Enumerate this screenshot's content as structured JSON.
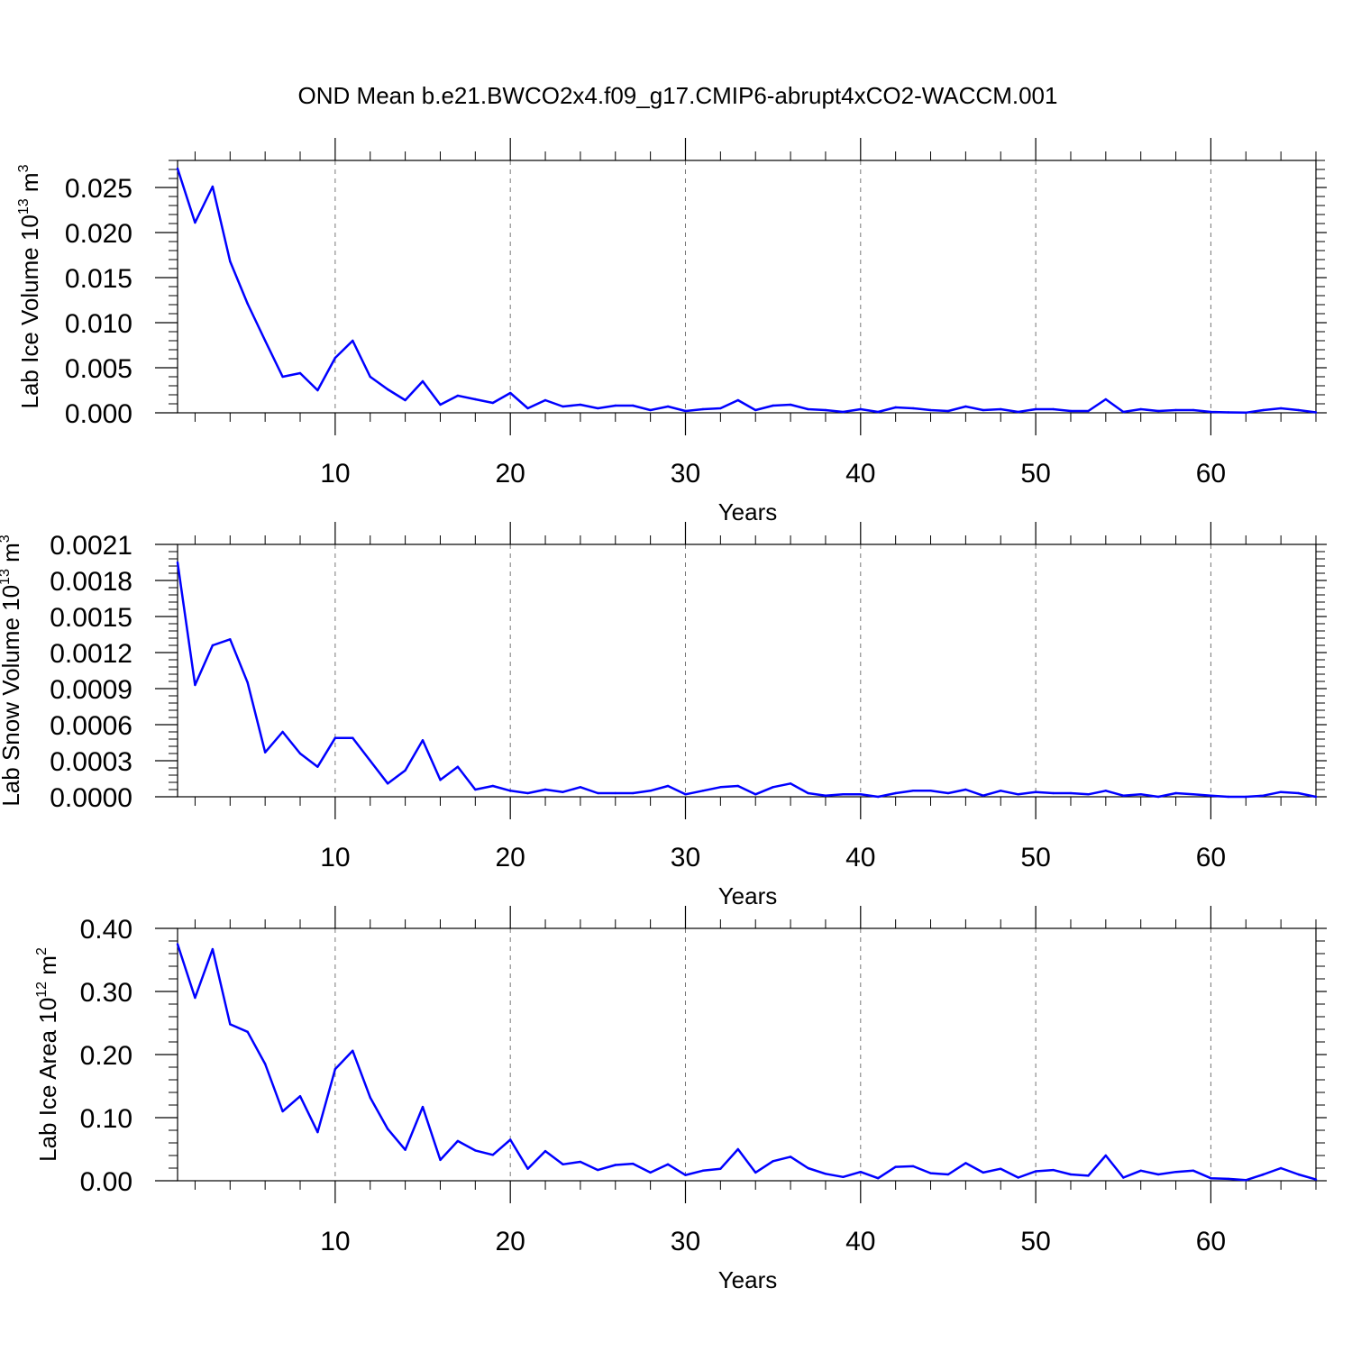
{
  "title": "OND Mean b.e21.BWCO2x4.f09_g17.CMIP6-abrupt4xCO2-WACCM.001",
  "line_color": "#0000ff",
  "chart_data": [
    {
      "type": "line",
      "id": "ice-volume",
      "xlabel": "Years",
      "ylabel": {
        "prefix": "Lab Ice Volume 10",
        "exp": "13",
        "unit": " m",
        "unit_exp": "3"
      },
      "xlim": [
        1,
        66
      ],
      "ylim": [
        0,
        0.028
      ],
      "xticks": [
        10,
        20,
        30,
        40,
        50,
        60
      ],
      "xtick_labels": [
        "10",
        "20",
        "30",
        "40",
        "50",
        "60"
      ],
      "yticks": [
        0,
        0.005,
        0.01,
        0.015,
        0.02,
        0.025
      ],
      "ytick_labels": [
        "0.000",
        "0.005",
        "0.010",
        "0.015",
        "0.020",
        "0.025"
      ],
      "x": [
        1,
        2,
        3,
        4,
        5,
        6,
        7,
        8,
        9,
        10,
        11,
        12,
        13,
        14,
        15,
        16,
        17,
        18,
        19,
        20,
        21,
        22,
        23,
        24,
        25,
        26,
        27,
        28,
        29,
        30,
        31,
        32,
        33,
        34,
        35,
        36,
        37,
        38,
        39,
        40,
        41,
        42,
        43,
        44,
        45,
        46,
        47,
        48,
        49,
        50,
        51,
        52,
        53,
        54,
        55,
        56,
        57,
        58,
        59,
        60,
        61,
        62,
        63,
        64,
        65,
        66
      ],
      "values": [
        0.0271,
        0.0211,
        0.0251,
        0.0168,
        0.0121,
        0.008,
        0.004,
        0.0044,
        0.0025,
        0.0061,
        0.008,
        0.004,
        0.0026,
        0.0014,
        0.0035,
        0.0009,
        0.0019,
        0.0015,
        0.0011,
        0.0022,
        0.0005,
        0.0014,
        0.0007,
        0.0009,
        0.0005,
        0.0008,
        0.0008,
        0.0003,
        0.0007,
        0.0002,
        0.0004,
        0.0005,
        0.0014,
        0.0003,
        0.0008,
        0.0009,
        0.0004,
        0.0003,
        0.0001,
        0.0004,
        0.0001,
        0.0006,
        0.0005,
        0.0003,
        0.0002,
        0.0007,
        0.0003,
        0.0004,
        0.0001,
        0.0004,
        0.0004,
        0.0002,
        0.0002,
        0.0015,
        0.0001,
        0.0004,
        0.0002,
        0.0003,
        0.0003,
        0.0001,
        5e-05,
        2e-05,
        0.0003,
        0.0005,
        0.0003,
        5e-05
      ]
    },
    {
      "type": "line",
      "id": "snow-volume",
      "xlabel": "Years",
      "ylabel": {
        "prefix": "Lab Snow Volume 10",
        "exp": "13",
        "unit": " m",
        "unit_exp": "3"
      },
      "xlim": [
        1,
        66
      ],
      "ylim": [
        0,
        0.0021
      ],
      "xticks": [
        10,
        20,
        30,
        40,
        50,
        60
      ],
      "xtick_labels": [
        "10",
        "20",
        "30",
        "40",
        "50",
        "60"
      ],
      "yticks": [
        0,
        0.0003,
        0.0006,
        0.0009,
        0.0012,
        0.0015,
        0.0018,
        0.0021
      ],
      "ytick_labels": [
        "0.0000",
        "0.0003",
        "0.0006",
        "0.0009",
        "0.0012",
        "0.0015",
        "0.0018",
        "0.0021"
      ],
      "x": [
        1,
        2,
        3,
        4,
        5,
        6,
        7,
        8,
        9,
        10,
        11,
        12,
        13,
        14,
        15,
        16,
        17,
        18,
        19,
        20,
        21,
        22,
        23,
        24,
        25,
        26,
        27,
        28,
        29,
        30,
        31,
        32,
        33,
        34,
        35,
        36,
        37,
        38,
        39,
        40,
        41,
        42,
        43,
        44,
        45,
        46,
        47,
        48,
        49,
        50,
        51,
        52,
        53,
        54,
        55,
        56,
        57,
        58,
        59,
        60,
        61,
        62,
        63,
        64,
        65,
        66
      ],
      "values": [
        0.00195,
        0.00093,
        0.00126,
        0.00131,
        0.00095,
        0.00037,
        0.00054,
        0.00036,
        0.00025,
        0.00049,
        0.00049,
        0.0003,
        0.00011,
        0.00022,
        0.00047,
        0.00014,
        0.00025,
        6e-05,
        9e-05,
        5e-05,
        3e-05,
        6e-05,
        4e-05,
        8e-05,
        3e-05,
        3e-05,
        3e-05,
        5e-05,
        9e-05,
        2e-05,
        5e-05,
        8e-05,
        9e-05,
        2e-05,
        8e-05,
        0.00011,
        3e-05,
        1e-05,
        2e-05,
        2e-05,
        0.0,
        3e-05,
        5e-05,
        5e-05,
        3e-05,
        6e-05,
        1e-05,
        5e-05,
        2e-05,
        4e-05,
        3e-05,
        3e-05,
        2e-05,
        5e-05,
        1e-05,
        2e-05,
        0.0,
        3e-05,
        2e-05,
        1e-05,
        0.0,
        0.0,
        1e-05,
        4e-05,
        3e-05,
        0.0
      ]
    },
    {
      "type": "line",
      "id": "ice-area",
      "xlabel": "Years",
      "ylabel": {
        "prefix": "Lab Ice Area 10",
        "exp": "12",
        "unit": " m",
        "unit_exp": "2"
      },
      "xlim": [
        1,
        66
      ],
      "ylim": [
        0,
        0.4
      ],
      "xticks": [
        10,
        20,
        30,
        40,
        50,
        60
      ],
      "xtick_labels": [
        "10",
        "20",
        "30",
        "40",
        "50",
        "60"
      ],
      "yticks": [
        0,
        0.1,
        0.2,
        0.3,
        0.4
      ],
      "ytick_labels": [
        "0.00",
        "0.10",
        "0.20",
        "0.30",
        "0.40"
      ],
      "x": [
        1,
        2,
        3,
        4,
        5,
        6,
        7,
        8,
        9,
        10,
        11,
        12,
        13,
        14,
        15,
        16,
        17,
        18,
        19,
        20,
        21,
        22,
        23,
        24,
        25,
        26,
        27,
        28,
        29,
        30,
        31,
        32,
        33,
        34,
        35,
        36,
        37,
        38,
        39,
        40,
        41,
        42,
        43,
        44,
        45,
        46,
        47,
        48,
        49,
        50,
        51,
        52,
        53,
        54,
        55,
        56,
        57,
        58,
        59,
        60,
        61,
        62,
        63,
        64,
        65,
        66
      ],
      "values": [
        0.375,
        0.29,
        0.367,
        0.248,
        0.236,
        0.185,
        0.11,
        0.134,
        0.077,
        0.177,
        0.206,
        0.132,
        0.082,
        0.049,
        0.117,
        0.033,
        0.063,
        0.048,
        0.041,
        0.065,
        0.019,
        0.047,
        0.026,
        0.03,
        0.017,
        0.025,
        0.027,
        0.013,
        0.026,
        0.009,
        0.016,
        0.019,
        0.05,
        0.013,
        0.031,
        0.038,
        0.02,
        0.011,
        0.006,
        0.014,
        0.004,
        0.022,
        0.023,
        0.012,
        0.01,
        0.028,
        0.013,
        0.019,
        0.005,
        0.015,
        0.017,
        0.01,
        0.008,
        0.04,
        0.005,
        0.016,
        0.01,
        0.014,
        0.016,
        0.004,
        0.003,
        0.001,
        0.01,
        0.02,
        0.01,
        0.002
      ]
    }
  ]
}
